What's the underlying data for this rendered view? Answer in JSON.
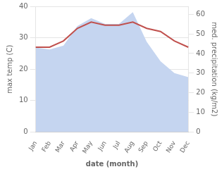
{
  "chart_data": {
    "type": "line",
    "xlabel": "date (month)",
    "ylabel": "max temp (C)",
    "y2label": "med. precipitation (kg/m2)",
    "categories": [
      "Jan",
      "Feb",
      "Mar",
      "Apr",
      "May",
      "Jun",
      "Jul",
      "Aug",
      "Sep",
      "Oct",
      "Nov",
      "Dec"
    ],
    "series": [
      {
        "type": "area",
        "axis": "y2",
        "color": "#c5d5f0",
        "values": [
          43,
          42,
          44,
          54,
          58,
          55,
          55,
          61,
          46,
          36,
          30,
          28
        ]
      },
      {
        "type": "line",
        "color": "#c0504d",
        "values": [
          27,
          27,
          29,
          33,
          35,
          34,
          34,
          35,
          33,
          32,
          29,
          27
        ]
      }
    ],
    "ylim": [
      0,
      40
    ],
    "yticks": [
      0,
      10,
      20,
      30,
      40
    ],
    "y2lim": [
      0,
      64
    ],
    "y2ticks": [
      0,
      10,
      20,
      30,
      40,
      50,
      60
    ],
    "grid": true
  }
}
